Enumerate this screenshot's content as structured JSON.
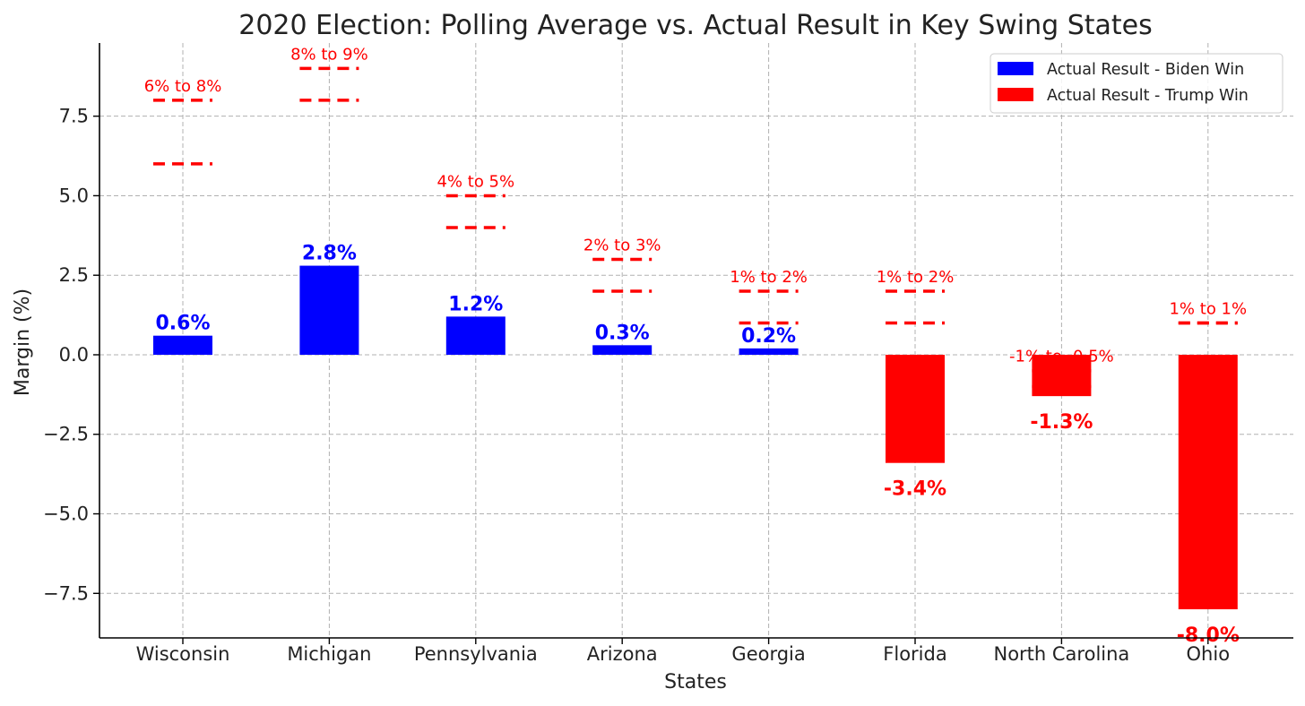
{
  "chart_data": {
    "type": "bar",
    "title": "2020 Election: Polling Average vs. Actual Result in Key Swing States",
    "xlabel": "States",
    "ylabel": "Margin (%)",
    "ylim": [
      -8.9,
      9.8
    ],
    "yticks": [
      -7.5,
      -5.0,
      -2.5,
      0.0,
      2.5,
      5.0,
      7.5
    ],
    "ytick_labels": [
      "−7.5",
      "−5.0",
      "−2.5",
      "0.0",
      "2.5",
      "5.0",
      "7.5"
    ],
    "grid": true,
    "categories": [
      "Wisconsin",
      "Michigan",
      "Pennsylvania",
      "Arizona",
      "Georgia",
      "Florida",
      "North Carolina",
      "Ohio"
    ],
    "actual_results": [
      0.6,
      2.8,
      1.2,
      0.3,
      0.2,
      -3.4,
      -1.3,
      -8.0
    ],
    "actual_result_labels": [
      "0.6%",
      "2.8%",
      "1.2%",
      "0.3%",
      "0.2%",
      "-3.4%",
      "-1.3%",
      "-8.0%"
    ],
    "polling_range_low": [
      6,
      8,
      4,
      2,
      1,
      1,
      -1,
      1
    ],
    "polling_range_high": [
      8,
      9,
      5,
      3,
      2,
      2,
      -0.5,
      1
    ],
    "polling_range_labels": [
      "6% to 8%",
      "8% to 9%",
      "4% to 5%",
      "2% to 3%",
      "1% to 2%",
      "1% to 2%",
      "-1% to -0.5%",
      "1% to 1%"
    ],
    "legend": {
      "position": "top-right",
      "entries": [
        {
          "label": "Actual Result - Biden Win",
          "color": "#0000ff"
        },
        {
          "label": "Actual Result - Trump Win",
          "color": "#ff0000"
        }
      ]
    },
    "colors": {
      "biden": "#0000ff",
      "trump": "#ff0000",
      "polling": "#ff0000"
    }
  }
}
